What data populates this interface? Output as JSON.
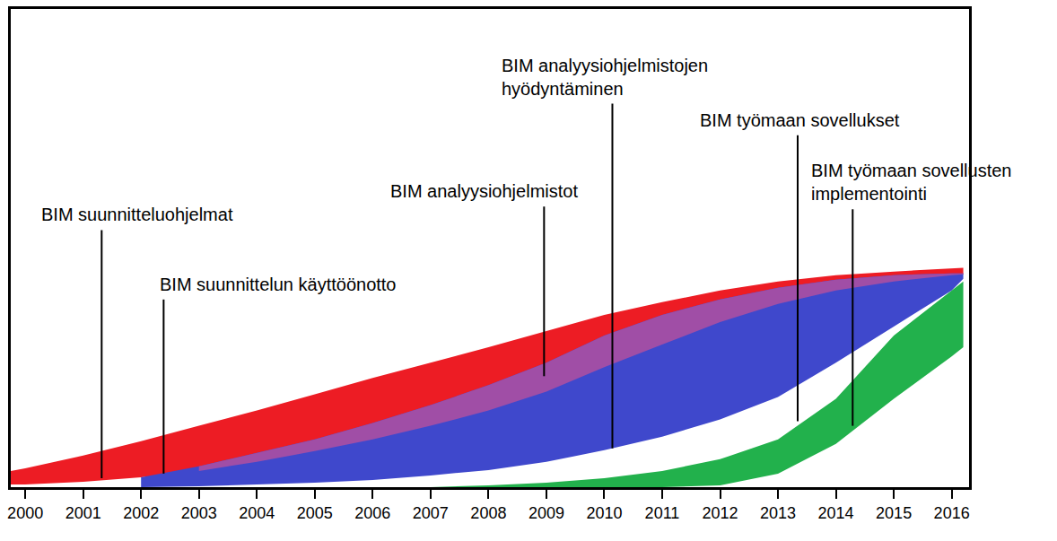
{
  "chart_data": {
    "type": "band",
    "x": [
      1999.75,
      2000,
      2001,
      2002,
      2003,
      2004,
      2005,
      2006,
      2007,
      2008,
      2009,
      2010,
      2011,
      2012,
      2013,
      2014,
      2015,
      2016,
      2016.2
    ],
    "xlim": [
      1999.75,
      2016.3
    ],
    "xticks": [
      2000,
      2001,
      2002,
      2003,
      2004,
      2005,
      2006,
      2007,
      2008,
      2009,
      2010,
      2011,
      2012,
      2013,
      2014,
      2015,
      2016
    ],
    "ylim": [
      0,
      106
    ],
    "tick_labels": "x",
    "grid": false,
    "series": [
      {
        "color": "#ed1c24",
        "upper": [
          3.6,
          4.2,
          7,
          10.2,
          13.6,
          17,
          20.6,
          24.2,
          27.6,
          31,
          34.6,
          38.2,
          41,
          43.6,
          45.6,
          47,
          47.8,
          48.4,
          48.6
        ],
        "lower": [
          0.6,
          0.6,
          1.2,
          2.2,
          3.6,
          5.6,
          8,
          10.6,
          13.6,
          17,
          21.2,
          26.6,
          31.6,
          36.6,
          40.6,
          43.6,
          45.6,
          47,
          47.2
        ]
      },
      {
        "color": "#3f48cc",
        "upper": [
          null,
          null,
          null,
          2.2,
          4.6,
          7.6,
          10.6,
          14.2,
          18.2,
          22.6,
          27.6,
          33.6,
          38.2,
          41.6,
          44.2,
          46,
          47,
          47.4,
          47.4
        ],
        "lower": [
          null,
          null,
          null,
          0,
          0.2,
          0.6,
          1,
          1.6,
          2.6,
          3.8,
          5.6,
          8.2,
          11.2,
          15,
          20,
          27.6,
          35.6,
          43.6,
          46.2
        ]
      },
      {
        "color": "#22b14c",
        "upper": [
          null,
          null,
          null,
          null,
          null,
          null,
          null,
          null,
          0,
          0.4,
          1,
          2,
          3.6,
          6.2,
          10.6,
          19.6,
          33.6,
          43.6,
          45.6
        ],
        "lower": [
          null,
          null,
          null,
          null,
          null,
          null,
          null,
          null,
          0,
          0,
          0,
          0,
          0,
          0.4,
          3,
          9.6,
          19.6,
          29,
          31
        ]
      }
    ],
    "annotations": [
      {
        "lines": [
          "BIM suunnitteluohjelmat"
        ],
        "x": 2001.32,
        "y_from": 2,
        "y_to": 57
      },
      {
        "lines": [
          "BIM suunnittelun käyttöönotto"
        ],
        "x": 2002.39,
        "y_from": 3,
        "y_to": 41.6
      },
      {
        "lines": [
          "BIM analyysiohjelmistot"
        ],
        "x": 2008.96,
        "y_from": 24.6,
        "y_to": 62.2
      },
      {
        "lines": [
          "BIM analyysiohjelmistojen",
          "hyödyntäminen"
        ],
        "x": 2010.14,
        "y_from": 8.6,
        "y_to": 85
      },
      {
        "lines": [
          "BIM työmaan sovellukset"
        ],
        "x": 2013.34,
        "y_from": 14.6,
        "y_to": 78
      },
      {
        "lines": [
          "BIM työmaan sovellusten",
          "implementointi"
        ],
        "x": 2014.29,
        "y_from": 13.6,
        "y_to": 61.6
      }
    ]
  }
}
